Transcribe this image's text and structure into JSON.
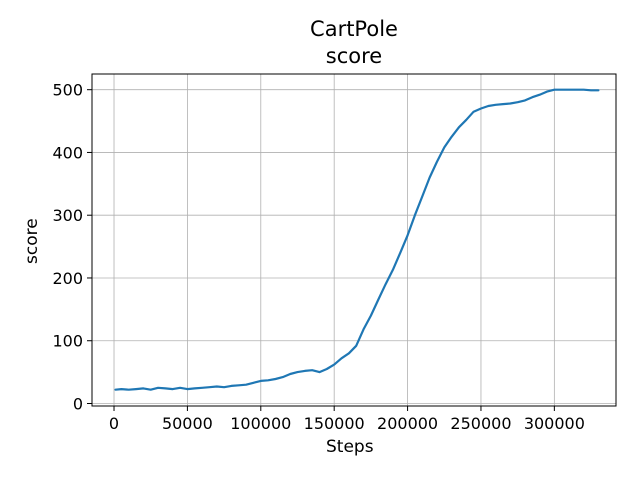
{
  "chart_data": {
    "type": "line",
    "title": "CartPole",
    "subtitle": "score",
    "xlabel": "Steps",
    "ylabel": "score",
    "xlim": [
      -15000,
      342000
    ],
    "ylim": [
      -4,
      525
    ],
    "xticks": [
      0,
      50000,
      100000,
      150000,
      200000,
      250000,
      300000
    ],
    "xtick_labels": [
      "0",
      "50000",
      "100000",
      "150000",
      "200000",
      "250000",
      "300000"
    ],
    "yticks": [
      0,
      100,
      200,
      300,
      400,
      500
    ],
    "ytick_labels": [
      "0",
      "100",
      "200",
      "300",
      "400",
      "500"
    ],
    "grid": true,
    "series": [
      {
        "color": "#1f77b4",
        "x": [
          1000,
          5000,
          10000,
          15000,
          20000,
          25000,
          30000,
          35000,
          40000,
          45000,
          50000,
          55000,
          60000,
          65000,
          70000,
          75000,
          80000,
          85000,
          90000,
          95000,
          100000,
          105000,
          110000,
          115000,
          120000,
          125000,
          130000,
          135000,
          140000,
          145000,
          150000,
          155000,
          160000,
          165000,
          170000,
          175000,
          180000,
          185000,
          190000,
          195000,
          200000,
          205000,
          210000,
          215000,
          220000,
          225000,
          230000,
          235000,
          240000,
          245000,
          250000,
          255000,
          260000,
          265000,
          270000,
          275000,
          280000,
          285000,
          290000,
          295000,
          300000,
          305000,
          310000,
          315000,
          320000,
          325000,
          330000
        ],
        "values": [
          22,
          23,
          22,
          23,
          24,
          22,
          25,
          24,
          23,
          25,
          23,
          24,
          25,
          26,
          27,
          26,
          28,
          29,
          30,
          33,
          36,
          37,
          39,
          42,
          47,
          50,
          52,
          53,
          50,
          55,
          62,
          72,
          80,
          92,
          118,
          140,
          165,
          190,
          213,
          240,
          268,
          300,
          330,
          360,
          385,
          408,
          425,
          440,
          452,
          465,
          470,
          474,
          476,
          477,
          478,
          480,
          483,
          488,
          492,
          497,
          500,
          500,
          500,
          500,
          500,
          499,
          499
        ]
      }
    ]
  }
}
